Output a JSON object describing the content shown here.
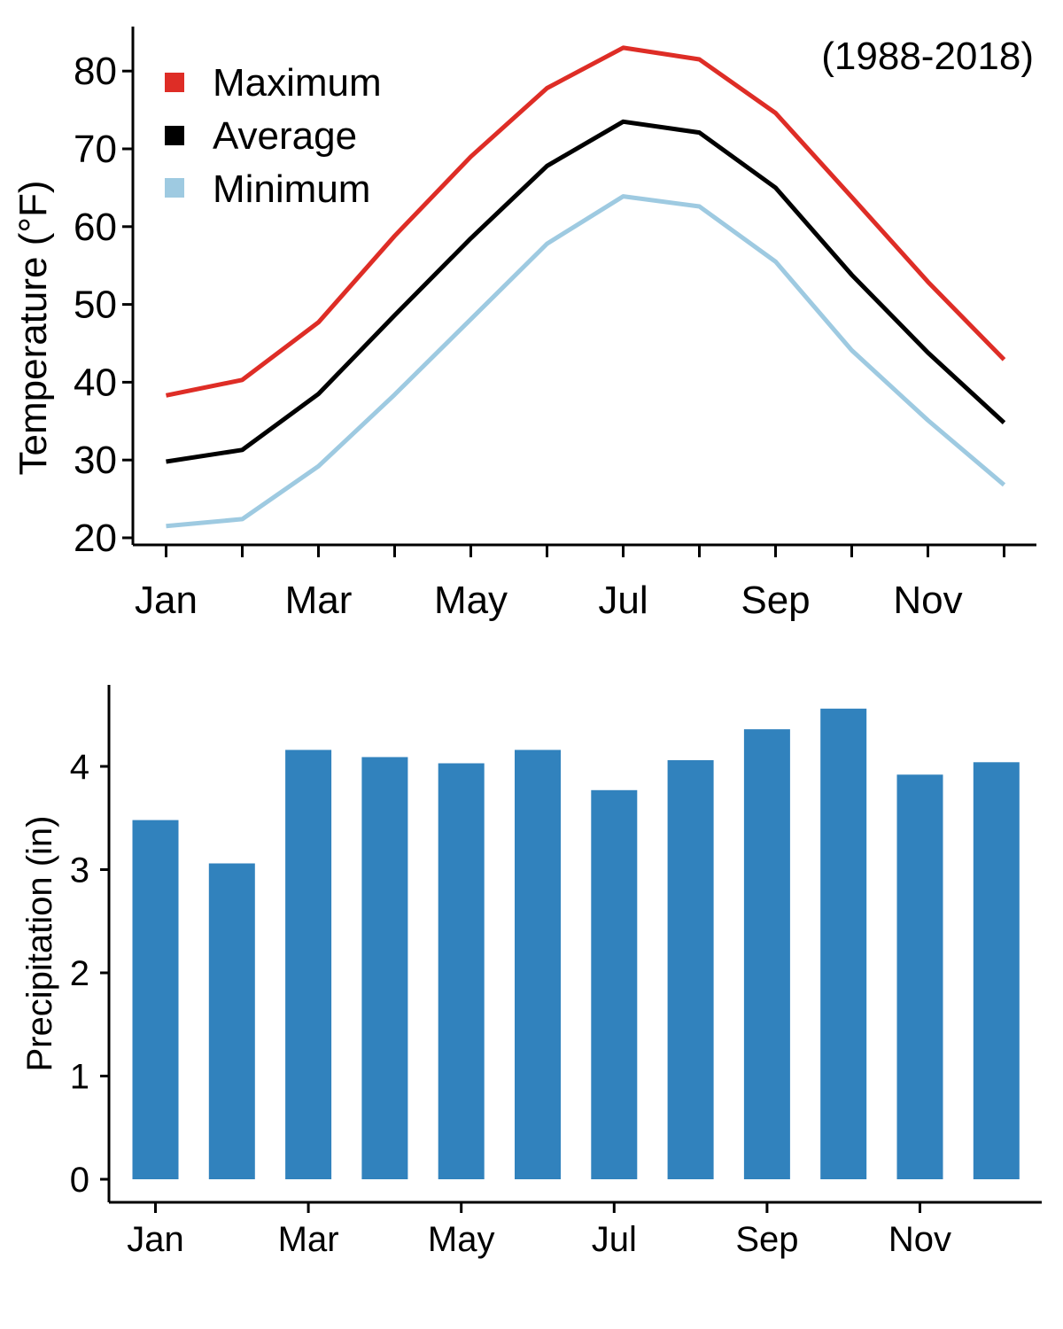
{
  "chart_data": [
    {
      "type": "line",
      "annotation": "(1988-2018)",
      "ylabel": "Temperature (°F)",
      "xlabel": "",
      "ylim": [
        20,
        85
      ],
      "yticks": [
        20,
        30,
        40,
        50,
        60,
        70,
        80
      ],
      "categories": [
        "Jan",
        "Feb",
        "Mar",
        "Apr",
        "May",
        "Jun",
        "Jul",
        "Aug",
        "Sep",
        "Oct",
        "Nov",
        "Dec"
      ],
      "xtick_labels": [
        "Jan",
        "",
        "Mar",
        "",
        "May",
        "",
        "Jul",
        "",
        "Sep",
        "",
        "Nov",
        ""
      ],
      "legend_position": "top-left",
      "series": [
        {
          "name": "Maximum",
          "color": "#de2d26",
          "values": [
            38.3,
            40.3,
            47.7,
            58.8,
            69.0,
            77.8,
            83.0,
            81.5,
            74.6,
            63.8,
            52.9,
            42.9
          ]
        },
        {
          "name": "Average",
          "color": "#000000",
          "values": [
            29.8,
            31.3,
            38.5,
            48.6,
            58.5,
            67.8,
            73.5,
            72.1,
            65.0,
            53.8,
            43.8,
            34.8
          ]
        },
        {
          "name": "Minimum",
          "color": "#9ecae1",
          "values": [
            21.5,
            22.4,
            29.2,
            38.4,
            48.1,
            57.8,
            63.9,
            62.6,
            55.5,
            44.1,
            35.1,
            26.8
          ]
        }
      ]
    },
    {
      "type": "bar",
      "ylabel": "Precipitation (in)",
      "xlabel": "",
      "ylim": [
        0,
        4.6
      ],
      "yticks": [
        0,
        1,
        2,
        3,
        4
      ],
      "color": "#3182bd",
      "categories": [
        "Jan",
        "Feb",
        "Mar",
        "Apr",
        "May",
        "Jun",
        "Jul",
        "Aug",
        "Sep",
        "Oct",
        "Nov",
        "Dec"
      ],
      "xtick_labels": [
        "Jan",
        "",
        "Mar",
        "",
        "May",
        "",
        "Jul",
        "",
        "Sep",
        "",
        "Nov",
        ""
      ],
      "values": [
        3.48,
        3.06,
        4.16,
        4.09,
        4.03,
        4.16,
        3.77,
        4.06,
        4.36,
        4.56,
        3.92,
        4.04
      ]
    }
  ]
}
